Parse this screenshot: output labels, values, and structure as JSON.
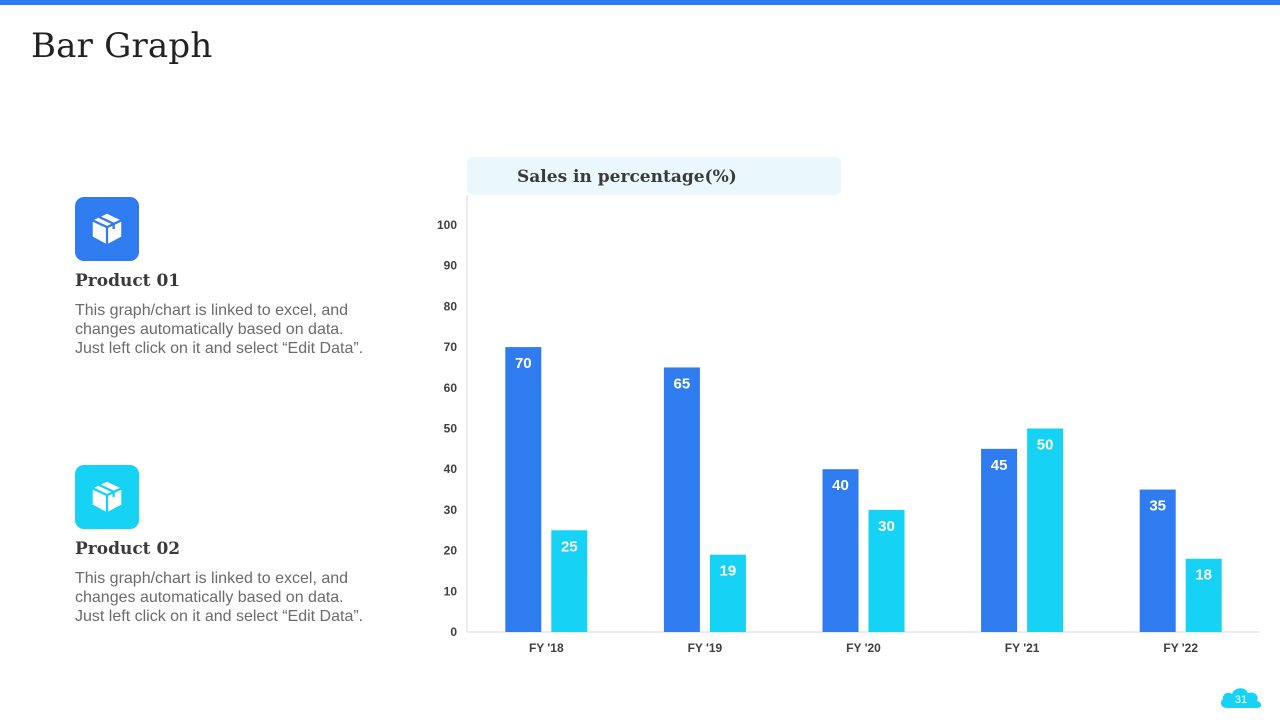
{
  "slide": {
    "title": "Bar Graph",
    "page_number": "31"
  },
  "products": [
    {
      "title": "Product 01",
      "text": "This graph/chart  is linked to excel, and changes automatically  based on data. Just left click on it and select “Edit Data”.",
      "icon": "box-icon",
      "color": "#2f7bf0"
    },
    {
      "title": "Product 02",
      "text": "This graph/chart  is linked to excel, and changes automatically  based on data. Just left click on it and select “Edit Data”.",
      "icon": "box-icon",
      "color": "#16d2f5"
    }
  ],
  "chart_data": {
    "type": "bar",
    "title": "Sales in percentage(%)",
    "categories": [
      "FY '18",
      "FY '19",
      "FY '20",
      "FY '21",
      "FY '22"
    ],
    "series": [
      {
        "values": [
          70,
          65,
          40,
          45,
          35
        ],
        "color": "#2f7bf0"
      },
      {
        "values": [
          25,
          19,
          30,
          50,
          18
        ],
        "color": "#16d2f5"
      }
    ],
    "ylim": [
      0,
      100
    ],
    "yticks": [
      0,
      10,
      20,
      30,
      40,
      50,
      60,
      70,
      80,
      90,
      100
    ],
    "grid": false,
    "data_labels": true
  }
}
